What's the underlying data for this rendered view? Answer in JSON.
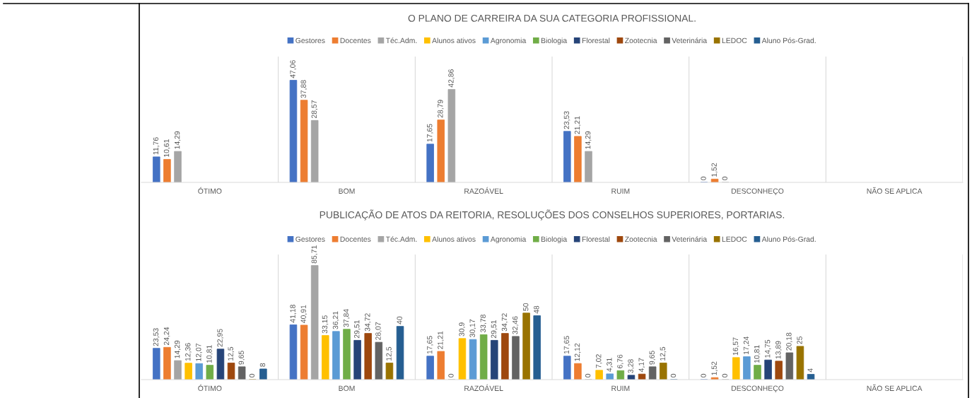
{
  "chart_data": [
    {
      "type": "bar",
      "title": "O PLANO DE CARREIRA DA SUA CATEGORIA PROFISSIONAL.",
      "categories": [
        "ÓTIMO",
        "BOM",
        "RAZOÁVEL",
        "RUIM",
        "DESCONHEÇO",
        "NÃO SE APLICA"
      ],
      "ylim": [
        0,
        58
      ],
      "grid": "x",
      "legend": "top",
      "series": [
        {
          "name": "Gestores",
          "color": "#4472c4",
          "values": [
            11.76,
            47.06,
            17.65,
            23.53,
            0,
            null
          ],
          "value_labels": [
            "11,76",
            "47,06",
            "17,65",
            "23,53",
            "0",
            null
          ]
        },
        {
          "name": "Docentes",
          "color": "#ed7d31",
          "values": [
            10.61,
            37.88,
            28.79,
            21.21,
            1.52,
            null
          ],
          "value_labels": [
            "10,61",
            "37,88",
            "28,79",
            "21,21",
            "1,52",
            null
          ]
        },
        {
          "name": "Téc.Adm.",
          "color": "#a5a5a5",
          "values": [
            14.29,
            28.57,
            42.86,
            14.29,
            0,
            null
          ],
          "value_labels": [
            "14,29",
            "28,57",
            "42,86",
            "14,29",
            "0",
            null
          ]
        },
        {
          "name": "Alunos ativos",
          "color": "#ffc000",
          "values": [
            null,
            null,
            null,
            null,
            null,
            null
          ]
        },
        {
          "name": "Agronomia",
          "color": "#5b9bd5",
          "values": [
            null,
            null,
            null,
            null,
            null,
            null
          ]
        },
        {
          "name": "Biologia",
          "color": "#70ad47",
          "values": [
            null,
            null,
            null,
            null,
            null,
            null
          ]
        },
        {
          "name": "Florestal",
          "color": "#264478",
          "values": [
            null,
            null,
            null,
            null,
            null,
            null
          ]
        },
        {
          "name": "Zootecnia",
          "color": "#9e480e",
          "values": [
            null,
            null,
            null,
            null,
            null,
            null
          ]
        },
        {
          "name": "Veterinária",
          "color": "#636363",
          "values": [
            null,
            null,
            null,
            null,
            null,
            null
          ]
        },
        {
          "name": "LEDOC",
          "color": "#997300",
          "values": [
            null,
            null,
            null,
            null,
            null,
            null
          ]
        },
        {
          "name": "Aluno Pós-Grad.",
          "color": "#255e91",
          "values": [
            null,
            null,
            null,
            null,
            null,
            null
          ]
        }
      ]
    },
    {
      "type": "bar",
      "title": "PUBLICAÇÃO DE ATOS DA REITORIA, RESOLUÇÕES DOS CONSELHOS SUPERIORES, PORTARIAS.",
      "categories": [
        "ÓTIMO",
        "BOM",
        "RAZOÁVEL",
        "RUIM",
        "DESCONHEÇO",
        "NÃO SE APLICA"
      ],
      "ylim": [
        0,
        94
      ],
      "grid": "x",
      "legend": "top",
      "series": [
        {
          "name": "Gestores",
          "color": "#4472c4",
          "values": [
            23.53,
            41.18,
            17.65,
            17.65,
            0,
            null
          ],
          "value_labels": [
            "23,53",
            "41,18",
            "17,65",
            "17,65",
            "0",
            null
          ]
        },
        {
          "name": "Docentes",
          "color": "#ed7d31",
          "values": [
            24.24,
            40.91,
            21.21,
            12.12,
            1.52,
            null
          ],
          "value_labels": [
            "24,24",
            "40,91",
            "21,21",
            "12,12",
            "1,52",
            null
          ]
        },
        {
          "name": "Téc.Adm.",
          "color": "#a5a5a5",
          "values": [
            14.29,
            85.71,
            0,
            0,
            0,
            null
          ],
          "value_labels": [
            "14,29",
            "85,71",
            "0",
            "0",
            "0",
            null
          ]
        },
        {
          "name": "Alunos ativos",
          "color": "#ffc000",
          "values": [
            12.36,
            33.15,
            30.9,
            7.02,
            16.57,
            null
          ],
          "value_labels": [
            "12,36",
            "33,15",
            "30,9",
            "7,02",
            "16,57",
            null
          ]
        },
        {
          "name": "Agronomia",
          "color": "#5b9bd5",
          "values": [
            12.07,
            36.21,
            30.17,
            4.31,
            17.24,
            null
          ],
          "value_labels": [
            "12,07",
            "36,21",
            "30,17",
            "4,31",
            "17,24",
            null
          ]
        },
        {
          "name": "Biologia",
          "color": "#70ad47",
          "values": [
            10.81,
            37.84,
            33.78,
            6.76,
            10.81,
            null
          ],
          "value_labels": [
            "10,81",
            "37,84",
            "33,78",
            "6,76",
            "10,81",
            null
          ]
        },
        {
          "name": "Florestal",
          "color": "#264478",
          "values": [
            22.95,
            29.51,
            29.51,
            3.28,
            14.75,
            null
          ],
          "value_labels": [
            "22,95",
            "29,51",
            "29,51",
            "3,28",
            "14,75",
            null
          ]
        },
        {
          "name": "Zootecnia",
          "color": "#9e480e",
          "values": [
            12.5,
            34.72,
            34.72,
            4.17,
            13.89,
            null
          ],
          "value_labels": [
            "12,5",
            "34,72",
            "34,72",
            "4,17",
            "13,89",
            null
          ]
        },
        {
          "name": "Veterinária",
          "color": "#636363",
          "values": [
            9.65,
            28.07,
            32.46,
            9.65,
            20.18,
            null
          ],
          "value_labels": [
            "9,65",
            "28,07",
            "32,46",
            "9,65",
            "20,18",
            null
          ]
        },
        {
          "name": "LEDOC",
          "color": "#997300",
          "values": [
            0,
            12.5,
            50,
            12.5,
            25,
            null
          ],
          "value_labels": [
            "0",
            "12,5",
            "50",
            "12,5",
            "25",
            null
          ]
        },
        {
          "name": "Aluno Pós-Grad.",
          "color": "#255e91",
          "values": [
            8,
            40,
            48,
            0,
            4,
            null
          ],
          "value_labels": [
            "8",
            "40",
            "48",
            "0",
            "4",
            null
          ]
        }
      ]
    }
  ]
}
